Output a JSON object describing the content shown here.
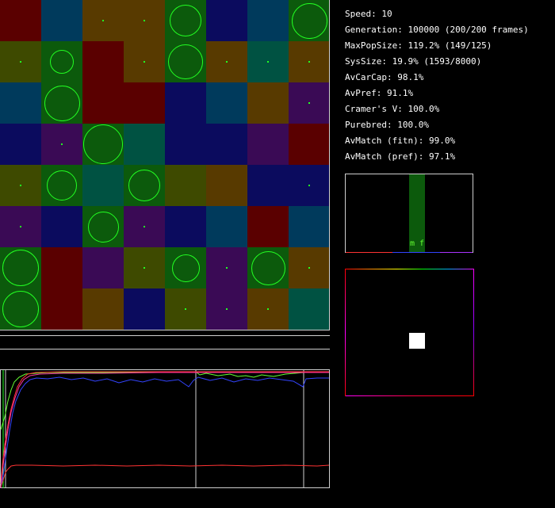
{
  "stats": {
    "speed": "Speed: 10",
    "generation": "Generation: 100000 (200/200 frames)",
    "max_pop_size": "MaxPopSize: 119.2% (149/125)",
    "sys_size": "SysSize: 19.9% (1593/8000)",
    "av_car_cap": "AvCarCap: 98.1%",
    "av_pref": "AvPref: 91.1%",
    "cramers_v": "Cramer's V: 100.0%",
    "purebred": "Purebred: 100.0%",
    "av_match_fitn": "AvMatch (fitn): 99.0%",
    "av_match_pref": "AvMatch (pref): 97.1%"
  },
  "mate_pref": {
    "label": "m f"
  },
  "colors": {
    "green": "#0c5a0c",
    "navy": "#0b0b5e",
    "blue": "#003a5c",
    "teal": "#005242",
    "maroon": "#5a0000",
    "brown": "#583a00",
    "olive": "#3e4a00",
    "purple": "#3a0a55",
    "ring": "#22ff22",
    "frame": "#cfcfcf"
  },
  "grid": {
    "rows": [
      [
        {
          "c": "maroon"
        },
        {
          "c": "blue"
        },
        {
          "c": "brown",
          "m": "dot"
        },
        {
          "c": "brown",
          "m": "dot"
        },
        {
          "c": "green",
          "m": "ring",
          "r": 0.8
        },
        {
          "c": "navy"
        },
        {
          "c": "blue"
        },
        {
          "c": "green",
          "m": "ring",
          "r": 0.9
        }
      ],
      [
        {
          "c": "olive",
          "m": "dot"
        },
        {
          "c": "green",
          "m": "ring",
          "r": 0.6
        },
        {
          "c": "maroon"
        },
        {
          "c": "brown",
          "m": "dot"
        },
        {
          "c": "green",
          "m": "ring",
          "r": 0.88
        },
        {
          "c": "brown",
          "m": "dot"
        },
        {
          "c": "teal",
          "m": "dot"
        },
        {
          "c": "brown",
          "m": "dot"
        }
      ],
      [
        {
          "c": "blue"
        },
        {
          "c": "green",
          "m": "ring",
          "r": 0.9
        },
        {
          "c": "maroon"
        },
        {
          "c": "maroon"
        },
        {
          "c": "navy"
        },
        {
          "c": "blue"
        },
        {
          "c": "brown"
        },
        {
          "c": "purple",
          "m": "dot"
        }
      ],
      [
        {
          "c": "navy"
        },
        {
          "c": "purple",
          "m": "dot"
        },
        {
          "c": "green",
          "m": "ring",
          "r": 1.0
        },
        {
          "c": "teal"
        },
        {
          "c": "navy"
        },
        {
          "c": "navy"
        },
        {
          "c": "purple"
        },
        {
          "c": "maroon"
        }
      ],
      [
        {
          "c": "olive",
          "m": "dot"
        },
        {
          "c": "green",
          "m": "ring",
          "r": 0.75
        },
        {
          "c": "teal"
        },
        {
          "c": "green",
          "m": "ring",
          "r": 0.8
        },
        {
          "c": "olive"
        },
        {
          "c": "brown"
        },
        {
          "c": "navy"
        },
        {
          "c": "navy",
          "m": "dot"
        }
      ],
      [
        {
          "c": "purple",
          "m": "dot"
        },
        {
          "c": "navy"
        },
        {
          "c": "green",
          "m": "ring",
          "r": 0.78
        },
        {
          "c": "purple",
          "m": "dot"
        },
        {
          "c": "navy"
        },
        {
          "c": "blue"
        },
        {
          "c": "maroon"
        },
        {
          "c": "blue"
        }
      ],
      [
        {
          "c": "green",
          "m": "ring",
          "r": 0.92
        },
        {
          "c": "maroon"
        },
        {
          "c": "purple"
        },
        {
          "c": "olive",
          "m": "dot"
        },
        {
          "c": "green",
          "m": "ring",
          "r": 0.7
        },
        {
          "c": "purple",
          "m": "dot"
        },
        {
          "c": "green",
          "m": "ring",
          "r": 0.85
        },
        {
          "c": "brown",
          "m": "dot"
        }
      ],
      [
        {
          "c": "green",
          "m": "ring",
          "r": 0.92
        },
        {
          "c": "maroon"
        },
        {
          "c": "brown"
        },
        {
          "c": "navy"
        },
        {
          "c": "olive",
          "m": "dot"
        },
        {
          "c": "purple",
          "m": "dot"
        },
        {
          "c": "brown",
          "m": "dot"
        },
        {
          "c": "teal"
        }
      ]
    ]
  }
}
